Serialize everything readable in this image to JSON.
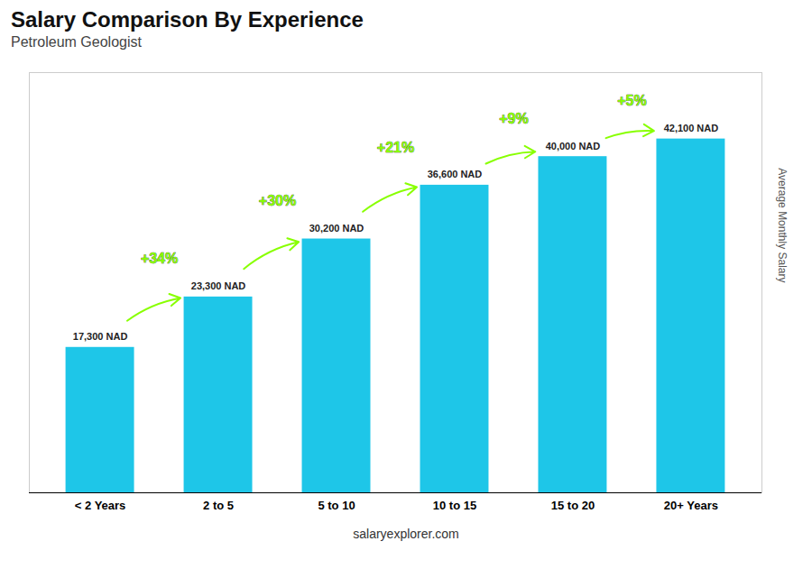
{
  "chart_data": {
    "type": "bar",
    "title": "Salary Comparison By Experience",
    "subtitle": "Petroleum Geologist",
    "ylabel": "Average Monthly Salary",
    "caption": "salaryexplorer.com",
    "categories": [
      "< 2 Years",
      "2 to 5",
      "5 to 10",
      "10 to 15",
      "15 to 20",
      "20+ Years"
    ],
    "values": [
      17300,
      23300,
      30200,
      36600,
      40000,
      42100
    ],
    "value_labels": [
      "17,300 NAD",
      "23,300 NAD",
      "30,200 NAD",
      "36,600 NAD",
      "40,000 NAD",
      "42,100 NAD"
    ],
    "data_labels": true,
    "color": "#1EC6E8",
    "annotations": [
      {
        "text": "+34%",
        "color": "#88FF00"
      },
      {
        "text": "+30%",
        "color": "#88FF00"
      },
      {
        "text": "+21%",
        "color": "#88FF00"
      },
      {
        "text": "+9%",
        "color": "#88FF00"
      },
      {
        "text": "+5%",
        "color": "#88FF00"
      }
    ],
    "ylim": [
      0,
      50000
    ],
    "grid": false,
    "tick_labels": "x"
  }
}
